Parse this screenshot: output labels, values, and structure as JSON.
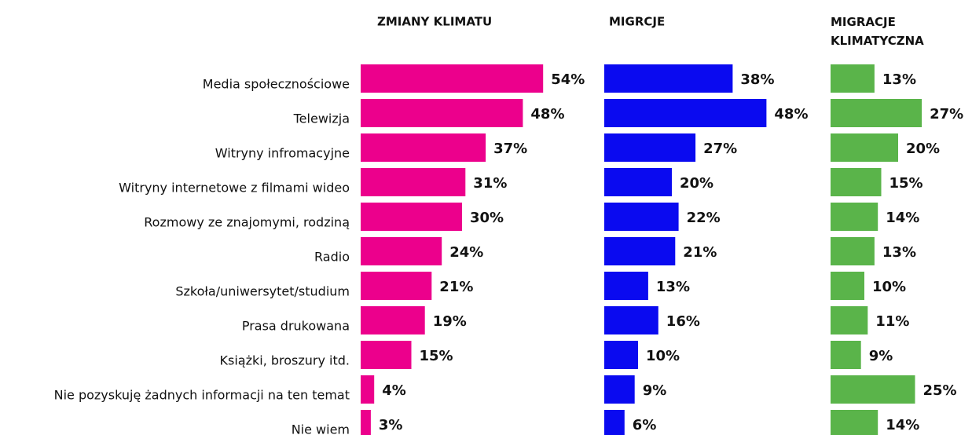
{
  "chart_data": {
    "type": "bar",
    "orientation": "horizontal",
    "categories": [
      "Media społecznościowe",
      "Telewizja",
      "Witryny infromacyjne",
      "Witryny internetowe z filmami wideo",
      "Rozmowy ze znajomymi, rodziną",
      "Radio",
      "Szkoła/uniwersytet/studium",
      "Prasa drukowana",
      "Książki, broszury itd.",
      "Nie pozyskuję żadnych informacji na ten temat",
      "Nie wiem"
    ],
    "series": [
      {
        "name": "ZMIANY KLIMATU",
        "color": "#ec008c",
        "values": [
          54,
          48,
          37,
          31,
          30,
          24,
          21,
          19,
          15,
          4,
          3
        ],
        "value_labels": [
          "54%",
          "48%",
          "37%",
          "31%",
          "30%",
          "24%",
          "21%",
          "19%",
          "15%",
          "4%",
          "3%"
        ]
      },
      {
        "name": "MIGRCJE",
        "color": "#0a0af0",
        "values": [
          38,
          48,
          27,
          20,
          22,
          21,
          13,
          16,
          10,
          9,
          6
        ],
        "value_labels": [
          "38%",
          "48%",
          "27%",
          "20%",
          "22%",
          "21%",
          "13%",
          "16%",
          "10%",
          "9%",
          "6%"
        ]
      },
      {
        "name": "MIGRACJE KLIMATYCZNA",
        "color": "#5ab44a",
        "values": [
          13,
          27,
          20,
          15,
          14,
          13,
          10,
          11,
          9,
          25,
          14
        ],
        "value_labels": [
          "13%",
          "27%",
          "20%",
          "15%",
          "14%",
          "13%",
          "10%",
          "11%",
          "9%",
          "25%",
          "14%"
        ]
      }
    ]
  }
}
